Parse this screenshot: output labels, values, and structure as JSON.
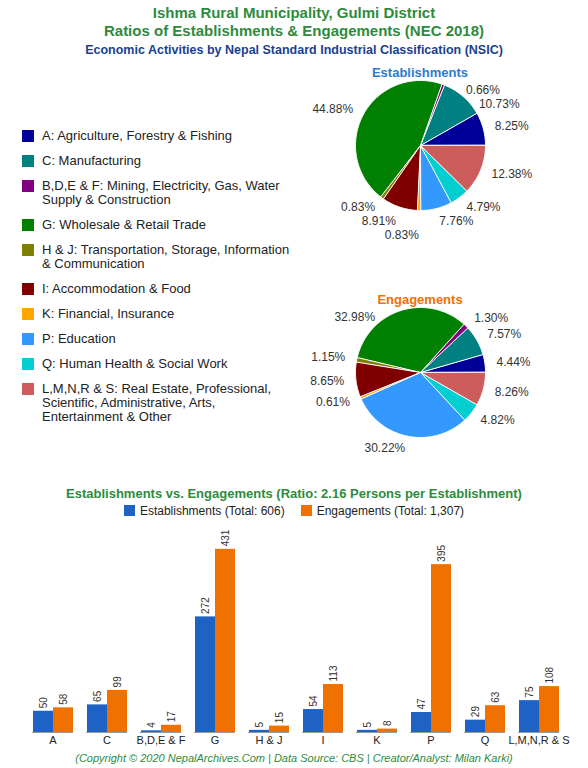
{
  "title": [
    "Ishma Rural Municipality, Gulmi District",
    "Ratios of Establishments & Engagements (NEC 2018)"
  ],
  "subtitle": "Economic Activities by Nepal Standard Industrial Classification (NSIC)",
  "footer": "(Copyright © 2020 NepalArchives.Com | Data Source: CBS | Creator/Analyst: Milan Karki)",
  "chart_data": [
    {
      "type": "pie",
      "title": "Establishments",
      "legend": "left",
      "data_labels": true,
      "categories": [
        "A: Agriculture, Forestry & Fishing",
        "C: Manufacturing",
        "B,D,E & F: Mining, Electricity, Gas, Water Supply & Construction",
        "G: Wholesale & Retail Trade",
        "H & J: Transportation, Storage, Information & Communication",
        "I: Accommodation & Food",
        "K: Financial, Insurance",
        "P: Education",
        "Q: Human Health & Social Work",
        "L,M,N,R & S: Real Estate, Professional, Scientific, Administrative, Arts, Entertainment & Other"
      ],
      "values": [
        8.25,
        10.73,
        0.66,
        44.88,
        0.83,
        8.91,
        0.83,
        7.76,
        4.79,
        12.38
      ],
      "value_labels": [
        "8.25%",
        "10.73%",
        "0.66%",
        "44.88%",
        "0.83%",
        "8.91%",
        "0.83%",
        "7.76%",
        "4.79%",
        "12.38%"
      ],
      "colors": [
        "#000099",
        "#008080",
        "#800080",
        "#008000",
        "#808000",
        "#800000",
        "#ffa500",
        "#3399ff",
        "#00ced1",
        "#cd5c5c"
      ]
    },
    {
      "type": "pie",
      "title": "Engagements",
      "legend": "left",
      "data_labels": true,
      "categories": [
        "A: Agriculture, Forestry & Fishing",
        "C: Manufacturing",
        "B,D,E & F: Mining, Electricity, Gas, Water Supply & Construction",
        "G: Wholesale & Retail Trade",
        "H & J: Transportation, Storage, Information & Communication",
        "I: Accommodation & Food",
        "K: Financial, Insurance",
        "P: Education",
        "Q: Human Health & Social Work",
        "L,M,N,R & S: Real Estate, Professional, Scientific, Administrative, Arts, Entertainment & Other"
      ],
      "values": [
        4.44,
        7.57,
        1.3,
        32.98,
        1.15,
        8.65,
        0.61,
        30.22,
        4.82,
        8.26
      ],
      "value_labels": [
        "4.44%",
        "7.57%",
        "1.30%",
        "32.98%",
        "1.15%",
        "8.65%",
        "0.61%",
        "30.22%",
        "4.82%",
        "8.26%"
      ],
      "colors": [
        "#000099",
        "#008080",
        "#800080",
        "#008000",
        "#808000",
        "#800000",
        "#ffa500",
        "#3399ff",
        "#00ced1",
        "#cd5c5c"
      ]
    },
    {
      "type": "bar",
      "title": "Establishments vs. Engagements (Ratio: 2.16 Persons per Establishment)",
      "legend": "top",
      "data_labels": true,
      "tick_labels": "x",
      "categories": [
        "A",
        "C",
        "B,D,E & F",
        "G",
        "H & J",
        "I",
        "K",
        "P",
        "Q",
        "L,M,N,R & S"
      ],
      "series": [
        {
          "name": "Establishments (Total: 606)",
          "color": "#1e63c4",
          "values": [
            50,
            65,
            4,
            272,
            5,
            54,
            5,
            47,
            29,
            75
          ]
        },
        {
          "name": "Engagements (Total: 1,307)",
          "color": "#f07000",
          "values": [
            58,
            99,
            17,
            431,
            15,
            113,
            8,
            395,
            63,
            108
          ]
        }
      ],
      "ylim": [
        0,
        480
      ]
    }
  ]
}
